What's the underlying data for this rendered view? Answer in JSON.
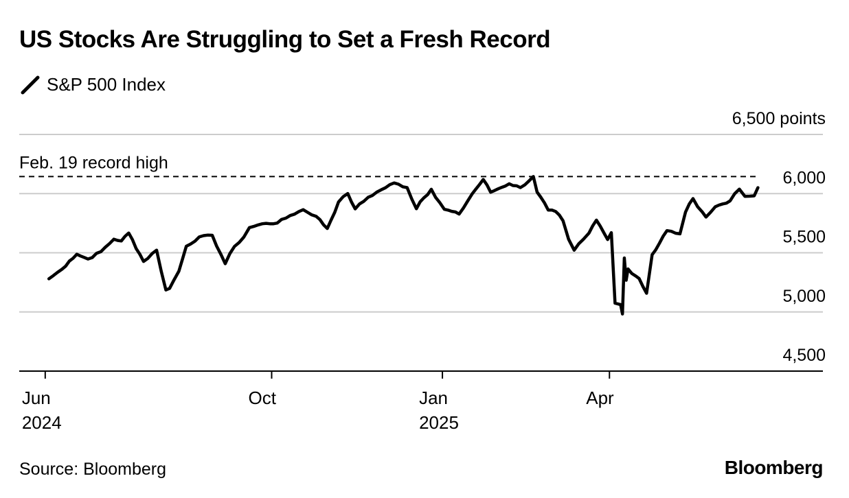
{
  "title": "US Stocks Are Struggling to Set a Fresh Record",
  "legend_label": "S&P 500 Index",
  "source": "Source: Bloomberg",
  "brand": "Bloomberg",
  "line_color": "#000000",
  "grid_color": "#cccccc",
  "chart_data": {
    "type": "line",
    "series": [
      {
        "name": "S&P 500 Index",
        "x": [
          "2024-06-03",
          "2024-06-10",
          "2024-06-14",
          "2024-06-18",
          "2024-06-24",
          "2024-07-01",
          "2024-07-08",
          "2024-07-12",
          "2024-07-16",
          "2024-07-24",
          "2024-07-31",
          "2024-08-05",
          "2024-08-07",
          "2024-08-12",
          "2024-08-16",
          "2024-08-23",
          "2024-08-30",
          "2024-09-06",
          "2024-09-11",
          "2024-09-16",
          "2024-09-19",
          "2024-09-26",
          "2024-10-04",
          "2024-10-11",
          "2024-10-18",
          "2024-10-25",
          "2024-10-31",
          "2024-11-06",
          "2024-11-11",
          "2024-11-15",
          "2024-11-22",
          "2024-11-29",
          "2024-12-06",
          "2024-12-13",
          "2024-12-18",
          "2024-12-20",
          "2024-12-26",
          "2025-01-02",
          "2025-01-10",
          "2025-01-17",
          "2025-01-23",
          "2025-01-27",
          "2025-01-31",
          "2025-02-06",
          "2025-02-12",
          "2025-02-19",
          "2025-02-21",
          "2025-02-27",
          "2025-03-03",
          "2025-03-07",
          "2025-03-10",
          "2025-03-13",
          "2025-03-18",
          "2025-03-21",
          "2025-03-25",
          "2025-03-31",
          "2025-04-02",
          "2025-04-04",
          "2025-04-07",
          "2025-04-08",
          "2025-04-09",
          "2025-04-10",
          "2025-04-11",
          "2025-04-17",
          "2025-04-21",
          "2025-04-24",
          "2025-05-02",
          "2025-05-09",
          "2025-05-12",
          "2025-05-16",
          "2025-05-21",
          "2025-05-23",
          "2025-05-28",
          "2025-06-05",
          "2025-06-10",
          "2025-06-13",
          "2025-06-18",
          "2025-06-20"
        ],
        "y": [
          5280,
          5360,
          5430,
          5487,
          5447,
          5509,
          5615,
          5600,
          5667,
          5427,
          5522,
          5186,
          5199,
          5344,
          5555,
          5634,
          5648,
          5408,
          5554,
          5633,
          5713,
          5745,
          5751,
          5815,
          5864,
          5808,
          5705,
          5929,
          6001,
          5871,
          5969,
          6032,
          6090,
          6051,
          5872,
          5930,
          6037,
          5868,
          5827,
          5997,
          6119,
          6012,
          6040,
          6083,
          6051,
          6144,
          6013,
          5861,
          5849,
          5770,
          5614,
          5522,
          5615,
          5667,
          5776,
          5612,
          5670,
          5074,
          5062,
          4983,
          5456,
          5268,
          5363,
          5282,
          5158,
          5484,
          5687,
          5660,
          5844,
          5958,
          5845,
          5802,
          5889,
          5939,
          6038,
          5977,
          5981,
          6050
        ]
      }
    ],
    "x_ticks": [
      {
        "date": "2024-06-01",
        "line1": "Jun",
        "line2": "2024"
      },
      {
        "date": "2024-10-01",
        "line1": "Oct",
        "line2": ""
      },
      {
        "date": "2025-01-01",
        "line1": "Jan",
        "line2": "2025"
      },
      {
        "date": "2025-04-01",
        "line1": "Apr",
        "line2": ""
      }
    ],
    "y_ticks": [
      {
        "value": 4500,
        "label": "4,500"
      },
      {
        "value": 5000,
        "label": "5,000"
      },
      {
        "value": 5500,
        "label": "5,500"
      },
      {
        "value": 6000,
        "label": "6,000"
      },
      {
        "value": 6500,
        "label": "6,500 points"
      }
    ],
    "xlim": [
      "2024-05-18",
      "2025-07-25"
    ],
    "ylim": [
      4500,
      6500
    ],
    "grid": true,
    "reference_line": {
      "value": 6144,
      "label": "Feb. 19 record high",
      "style": "dashed"
    }
  }
}
